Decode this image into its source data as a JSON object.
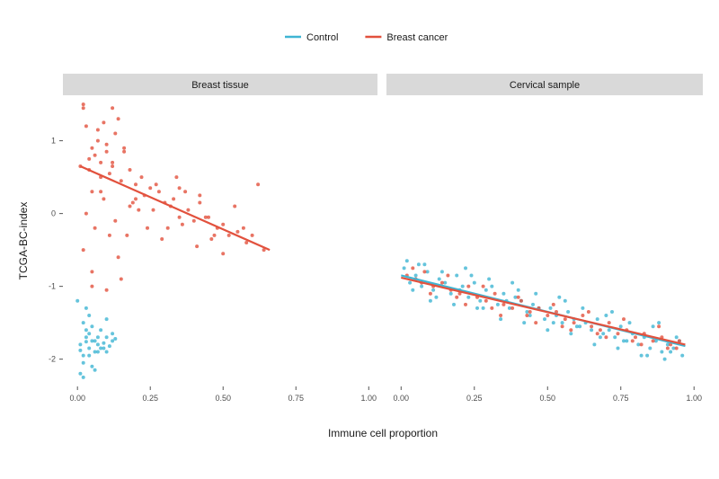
{
  "chart_data": {
    "type": "scatter",
    "xlabel": "Immune cell proportion",
    "ylabel": "TCGA-BC-index",
    "xlim": [
      -0.05,
      1.03
    ],
    "ylim": [
      -2.35,
      1.6
    ],
    "x_ticks": [
      0,
      0.25,
      0.5,
      0.75,
      1
    ],
    "x_tick_labels": [
      "0.00",
      "0.25",
      "0.50",
      "0.75",
      "1.00"
    ],
    "y_ticks": [
      -2,
      -1,
      0,
      1
    ],
    "y_tick_labels": [
      "-2",
      "-1",
      "0",
      "1"
    ],
    "grid": false,
    "legend_position": "top",
    "legend": [
      {
        "name": "Control",
        "color": "#3fb5d3"
      },
      {
        "name": "Breast cancer",
        "color": "#e2513d"
      }
    ],
    "panels": [
      {
        "title": "Breast tissue",
        "series": [
          {
            "name": "Control",
            "color": "#3fb5d3",
            "x": [
              0.01,
              0.02,
              0.03,
              0.04,
              0.05,
              0.06,
              0.07,
              0.02,
              0.04,
              0.06,
              0.08,
              0.1,
              0.12,
              0.03,
              0.05,
              0.07,
              0.09,
              0.11,
              0.01,
              0.02,
              0.03,
              0.05,
              0.06,
              0.08,
              0.1,
              0.04,
              0.07,
              0.09,
              0.13,
              0.0,
              0.02,
              0.04,
              0.1,
              0.12,
              0.01,
              0.03
            ],
            "y": [
              -1.8,
              -1.95,
              -1.7,
              -1.85,
              -1.75,
              -1.9,
              -1.8,
              -2.05,
              -1.65,
              -1.75,
              -1.85,
              -1.7,
              -1.75,
              -1.6,
              -2.1,
              -1.9,
              -1.78,
              -1.82,
              -2.2,
              -1.5,
              -1.3,
              -1.55,
              -2.15,
              -1.6,
              -1.45,
              -1.95,
              -1.7,
              -1.85,
              -1.72,
              -1.2,
              -2.25,
              -1.4,
              -1.9,
              -1.65,
              -1.88,
              -1.76
            ]
          },
          {
            "name": "Breast cancer",
            "color": "#e2513d",
            "x": [
              0.02,
              0.03,
              0.05,
              0.07,
              0.1,
              0.12,
              0.13,
              0.04,
              0.06,
              0.08,
              0.1,
              0.12,
              0.14,
              0.05,
              0.08,
              0.11,
              0.15,
              0.18,
              0.16,
              0.2,
              0.22,
              0.25,
              0.18,
              0.2,
              0.23,
              0.26,
              0.28,
              0.3,
              0.33,
              0.35,
              0.32,
              0.38,
              0.4,
              0.42,
              0.45,
              0.48,
              0.5,
              0.52,
              0.55,
              0.58,
              0.6,
              0.64,
              0.35,
              0.42,
              0.46,
              0.5,
              0.03,
              0.06,
              0.09,
              0.13,
              0.17,
              0.21,
              0.27,
              0.31,
              0.37,
              0.02,
              0.05,
              0.08,
              0.11,
              0.14,
              0.19,
              0.24,
              0.29,
              0.34,
              0.44,
              0.54,
              0.62,
              0.05,
              0.1,
              0.15,
              0.02,
              0.04,
              0.07,
              0.12,
              0.01,
              0.09,
              0.16,
              0.36,
              0.41,
              0.47,
              0.57
            ],
            "y": [
              1.5,
              1.2,
              0.9,
              1.0,
              0.85,
              0.7,
              1.1,
              0.6,
              0.8,
              0.5,
              0.95,
              0.65,
              1.3,
              0.3,
              0.7,
              0.55,
              0.45,
              0.6,
              0.9,
              0.2,
              0.5,
              0.35,
              0.1,
              0.4,
              0.25,
              0.05,
              0.3,
              0.15,
              0.2,
              -0.05,
              0.1,
              0.05,
              -0.1,
              0.15,
              -0.05,
              -0.2,
              -0.15,
              -0.3,
              -0.25,
              -0.4,
              -0.3,
              -0.5,
              0.35,
              0.25,
              -0.35,
              -0.55,
              0.0,
              -0.2,
              0.2,
              -0.1,
              -0.3,
              0.05,
              0.4,
              -0.2,
              0.3,
              -0.5,
              -0.8,
              0.3,
              -0.3,
              -0.6,
              0.15,
              -0.2,
              -0.35,
              0.5,
              -0.05,
              0.1,
              0.4,
              -1.0,
              -1.05,
              -0.9,
              1.45,
              0.75,
              1.15,
              1.45,
              0.65,
              1.25,
              0.85,
              -0.15,
              -0.45,
              -0.3,
              -0.2
            ],
            "fit": {
              "x": [
                0.01,
                0.66
              ],
              "y": [
                0.65,
                -0.5
              ]
            }
          }
        ]
      },
      {
        "title": "Cervical sample",
        "series": [
          {
            "name": "Control",
            "color": "#3fb5d3",
            "x": [
              0.01,
              0.03,
              0.05,
              0.07,
              0.09,
              0.11,
              0.13,
              0.15,
              0.17,
              0.19,
              0.21,
              0.23,
              0.25,
              0.27,
              0.29,
              0.31,
              0.33,
              0.35,
              0.37,
              0.39,
              0.41,
              0.43,
              0.45,
              0.47,
              0.49,
              0.51,
              0.53,
              0.55,
              0.57,
              0.59,
              0.61,
              0.63,
              0.65,
              0.67,
              0.69,
              0.71,
              0.73,
              0.75,
              0.77,
              0.79,
              0.81,
              0.83,
              0.85,
              0.87,
              0.89,
              0.91,
              0.93,
              0.95,
              0.02,
              0.06,
              0.1,
              0.14,
              0.18,
              0.22,
              0.26,
              0.3,
              0.34,
              0.38,
              0.42,
              0.46,
              0.5,
              0.54,
              0.58,
              0.62,
              0.66,
              0.7,
              0.74,
              0.78,
              0.82,
              0.86,
              0.9,
              0.94,
              0.04,
              0.12,
              0.2,
              0.28,
              0.36,
              0.44,
              0.52,
              0.6,
              0.68,
              0.76,
              0.84,
              0.92,
              0.96,
              0.08,
              0.24,
              0.4,
              0.56,
              0.72,
              0.88
            ],
            "y": [
              -0.75,
              -0.95,
              -0.85,
              -1.0,
              -0.8,
              -1.05,
              -0.9,
              -0.95,
              -1.1,
              -0.85,
              -1.0,
              -1.15,
              -0.95,
              -1.2,
              -1.05,
              -1.0,
              -1.25,
              -1.1,
              -1.3,
              -1.15,
              -1.2,
              -1.35,
              -1.25,
              -1.3,
              -1.45,
              -1.3,
              -1.4,
              -1.5,
              -1.35,
              -1.45,
              -1.55,
              -1.5,
              -1.6,
              -1.45,
              -1.65,
              -1.6,
              -1.7,
              -1.55,
              -1.75,
              -1.65,
              -1.8,
              -1.7,
              -1.85,
              -1.75,
              -1.9,
              -1.8,
              -1.85,
              -1.75,
              -0.65,
              -0.7,
              -1.2,
              -0.8,
              -1.25,
              -0.75,
              -1.3,
              -0.9,
              -1.45,
              -0.95,
              -1.5,
              -1.1,
              -1.6,
              -1.15,
              -1.65,
              -1.3,
              -1.8,
              -1.4,
              -1.85,
              -1.5,
              -1.95,
              -1.55,
              -2.0,
              -1.7,
              -1.05,
              -1.15,
              -1.05,
              -1.3,
              -1.2,
              -1.4,
              -1.5,
              -1.55,
              -1.7,
              -1.75,
              -1.95,
              -1.9,
              -1.95,
              -0.7,
              -0.85,
              -1.05,
              -1.2,
              -1.35,
              -1.5
            ],
            "fit": {
              "x": [
                0.0,
                0.97
              ],
              "y": [
                -0.85,
                -1.82
              ]
            }
          },
          {
            "name": "Breast cancer",
            "color": "#e2513d",
            "x": [
              0.02,
              0.05,
              0.08,
              0.11,
              0.14,
              0.17,
              0.2,
              0.23,
              0.26,
              0.29,
              0.32,
              0.35,
              0.38,
              0.41,
              0.44,
              0.47,
              0.5,
              0.53,
              0.56,
              0.59,
              0.62,
              0.65,
              0.68,
              0.71,
              0.74,
              0.77,
              0.8,
              0.83,
              0.86,
              0.89,
              0.92,
              0.95,
              0.04,
              0.1,
              0.16,
              0.22,
              0.28,
              0.34,
              0.4,
              0.46,
              0.52,
              0.58,
              0.64,
              0.7,
              0.76,
              0.82,
              0.88,
              0.94,
              0.07,
              0.19,
              0.31,
              0.43,
              0.55,
              0.67,
              0.79,
              0.91
            ],
            "y": [
              -0.85,
              -0.9,
              -0.8,
              -1.0,
              -0.95,
              -1.05,
              -1.1,
              -1.0,
              -1.15,
              -1.2,
              -1.1,
              -1.25,
              -1.3,
              -1.2,
              -1.35,
              -1.3,
              -1.4,
              -1.35,
              -1.45,
              -1.5,
              -1.4,
              -1.55,
              -1.6,
              -1.5,
              -1.65,
              -1.6,
              -1.7,
              -1.65,
              -1.75,
              -1.7,
              -1.8,
              -1.75,
              -0.75,
              -1.1,
              -0.85,
              -1.25,
              -1.0,
              -1.4,
              -1.15,
              -1.5,
              -1.25,
              -1.6,
              -1.35,
              -1.7,
              -1.45,
              -1.8,
              -1.55,
              -1.85,
              -0.95,
              -1.15,
              -1.3,
              -1.4,
              -1.55,
              -1.65,
              -1.75,
              -1.85
            ],
            "fit": {
              "x": [
                0.0,
                0.97
              ],
              "y": [
                -0.88,
                -1.8
              ]
            }
          }
        ]
      }
    ]
  }
}
